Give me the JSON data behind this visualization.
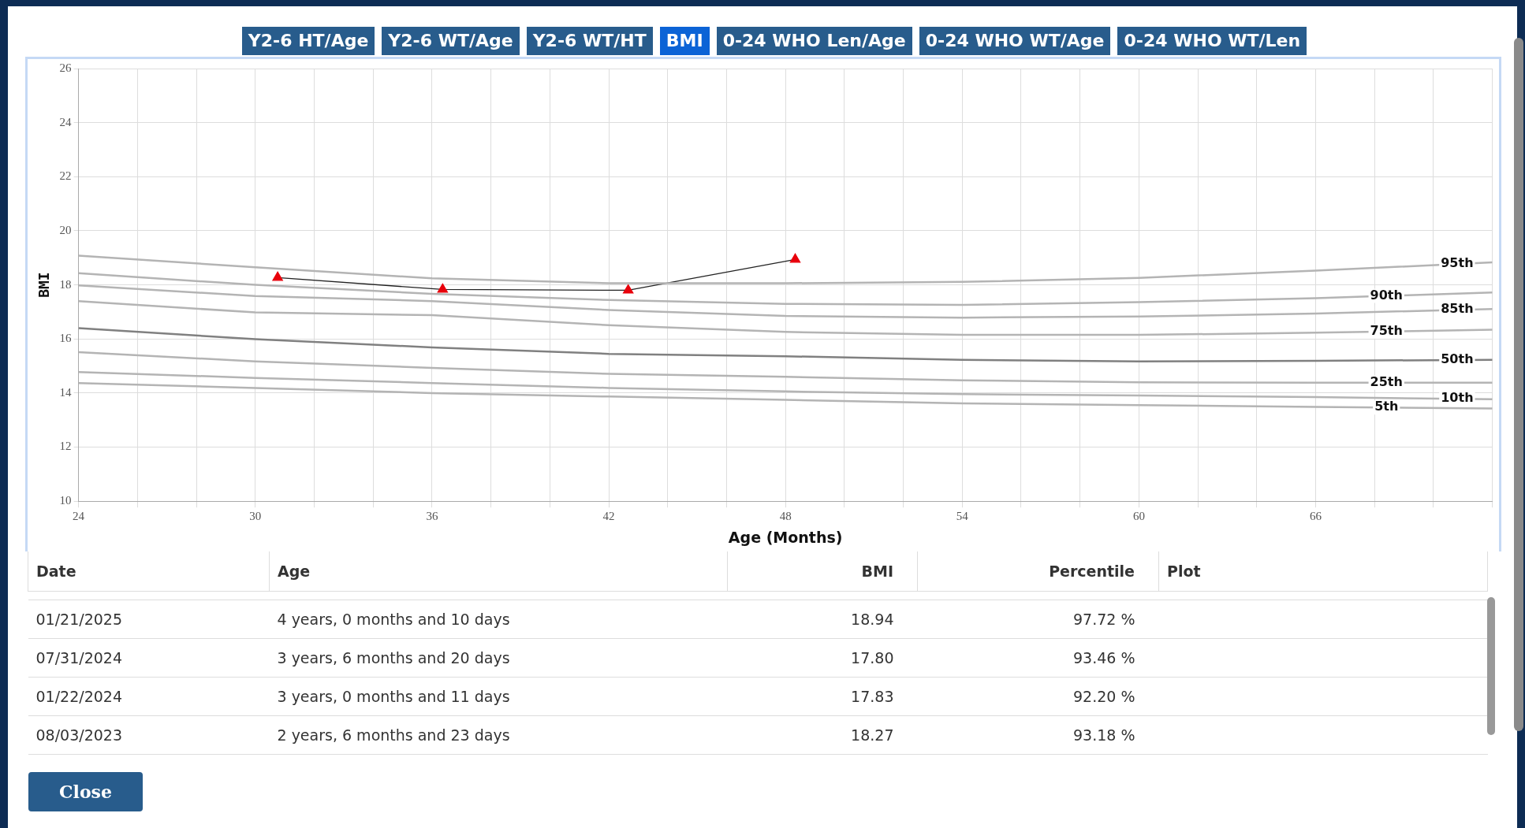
{
  "chart_data": {
    "type": "line",
    "xlabel": "Age (Months)",
    "ylabel": "BMI",
    "x": [
      24,
      30,
      36,
      42,
      48,
      54,
      60,
      66,
      72
    ],
    "xlim": [
      24,
      72
    ],
    "xticks": [
      24,
      {
        "value": 26,
        "label": null
      },
      {
        "value": 28,
        "label": null
      },
      30,
      {
        "value": 32,
        "label": null
      },
      {
        "value": 34,
        "label": null
      },
      36,
      {
        "value": 38,
        "label": null
      },
      {
        "value": 40,
        "label": null
      },
      42,
      {
        "value": 44,
        "label": null
      },
      {
        "value": 46,
        "label": null
      },
      48,
      {
        "value": 50,
        "label": null
      },
      {
        "value": 52,
        "label": null
      },
      54,
      {
        "value": 56,
        "label": null
      },
      {
        "value": 58,
        "label": null
      },
      60,
      {
        "value": 62,
        "label": null
      },
      {
        "value": 64,
        "label": null
      },
      66,
      {
        "value": 68,
        "label": null
      },
      {
        "value": 70,
        "label": null
      },
      {
        "value": 72,
        "label": null
      }
    ],
    "ylim": [
      10,
      26
    ],
    "yticks": [
      10,
      12,
      14,
      16,
      18,
      20,
      22,
      24,
      26
    ],
    "grid": true,
    "legend": false,
    "marker": "triangle",
    "line_style": "solid",
    "series": [
      {
        "name": "95th",
        "color": "#b4b4b4",
        "marker": "none",
        "values": [
          19.08,
          18.65,
          18.24,
          18.06,
          18.06,
          18.11,
          18.26,
          18.53,
          18.83
        ]
      },
      {
        "name": "90th",
        "color": "#b4b4b4",
        "marker": "none",
        "values": [
          18.43,
          18.0,
          17.67,
          17.44,
          17.3,
          17.26,
          17.36,
          17.51,
          17.72
        ]
      },
      {
        "name": "85th",
        "color": "#b4b4b4",
        "marker": "none",
        "values": [
          17.98,
          17.59,
          17.4,
          17.07,
          16.85,
          16.79,
          16.83,
          16.94,
          17.11
        ]
      },
      {
        "name": "75th",
        "color": "#b4b4b4",
        "marker": "none",
        "values": [
          17.4,
          16.98,
          16.88,
          16.51,
          16.26,
          16.15,
          16.15,
          16.23,
          16.34
        ]
      },
      {
        "name": "50th",
        "color": "#808080",
        "marker": "none",
        "values": [
          16.4,
          15.99,
          15.69,
          15.45,
          15.36,
          15.23,
          15.17,
          15.19,
          15.23
        ]
      },
      {
        "name": "25th",
        "color": "#b4b4b4",
        "marker": "none",
        "values": [
          15.51,
          15.17,
          14.93,
          14.71,
          14.6,
          14.47,
          14.4,
          14.38,
          14.38
        ]
      },
      {
        "name": "10th",
        "color": "#b4b4b4",
        "marker": "none",
        "values": [
          14.78,
          14.56,
          14.37,
          14.19,
          14.06,
          13.96,
          13.91,
          13.85,
          13.77
        ]
      },
      {
        "name": "5th",
        "color": "#b4b4b4",
        "marker": "none",
        "values": [
          14.37,
          14.19,
          14.0,
          13.87,
          13.75,
          13.62,
          13.55,
          13.49,
          13.43
        ]
      },
      {
        "color": "#222222",
        "colors": [
          "#e8000b",
          "#e8000b",
          "#e8000b",
          "#e8000b"
        ],
        "x": [
          30.76,
          36.36,
          42.66,
          48.33
        ],
        "values": [
          18.27,
          17.83,
          17.8,
          18.94
        ]
      }
    ],
    "annotations": [
      "Y2-6 HT/Age",
      "Y2-6 WT/Age",
      "Y2-6 WT/HT",
      "BMI",
      "0-24 WHO Len/Age",
      "0-24 WHO WT/Age",
      "0-24 WHO WT/Len",
      "Date",
      "Age",
      "BMI",
      "Percentile",
      "Plot",
      "Close",
      "01/21/2025",
      "4 years, 0 months and 10 days",
      "18.94",
      "97.72 %",
      "07/31/2024",
      "3 years, 6 months and 20 days",
      "17.80",
      "93.46 %",
      "01/22/2024",
      "3 years, 0 months and 11 days",
      "17.83",
      "92.20 %",
      "08/03/2023",
      "2 years, 6 months and 23 days",
      "18.27",
      "93.18 %"
    ]
  }
}
